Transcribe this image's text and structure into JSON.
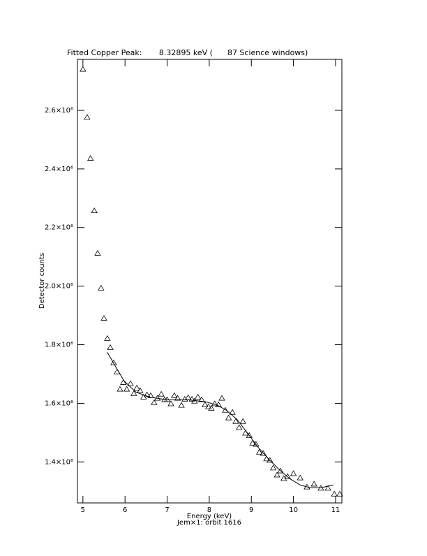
{
  "chart_data": {
    "type": "scatter",
    "title": "Fitted Copper Peak:       8.32895 keV (      87 Science windows)",
    "x_label": "Energy (keV)",
    "subtitle": "Jem×1: orbit 1616",
    "y_label": "Detector counts",
    "xlim": [
      4.87,
      11.15
    ],
    "ylim": [
      1260000,
      2774000
    ],
    "xticks": [
      5,
      6,
      7,
      8,
      9,
      10,
      11
    ],
    "yticks": [
      {
        "value": 1400000,
        "label": "1.4×10⁶"
      },
      {
        "value": 1600000,
        "label": "1.6×10⁶"
      },
      {
        "value": 1800000,
        "label": "1.8×10⁶"
      },
      {
        "value": 2000000,
        "label": "2.0×10⁶"
      },
      {
        "value": 2200000,
        "label": "2.2×10⁶"
      },
      {
        "value": 2400000,
        "label": "2.4×10⁶"
      },
      {
        "value": 2600000,
        "label": "2.6×10⁶"
      }
    ],
    "series": [
      {
        "style": "triangles",
        "color": "#000000",
        "x": [
          5.0,
          5.1,
          5.18,
          5.27,
          5.35,
          5.43,
          5.5,
          5.58,
          5.65,
          5.73,
          5.81,
          5.88,
          5.96,
          6.04,
          6.13,
          6.21,
          6.28,
          6.36,
          6.44,
          6.52,
          6.61,
          6.69,
          6.77,
          6.86,
          6.94,
          7.0,
          7.09,
          7.17,
          7.25,
          7.34,
          7.42,
          7.5,
          7.59,
          7.65,
          7.73,
          7.82,
          7.9,
          7.98,
          8.05,
          8.13,
          8.22,
          8.3,
          8.38,
          8.46,
          8.55,
          8.63,
          8.71,
          8.8,
          8.86,
          8.95,
          9.03,
          9.11,
          9.19,
          9.28,
          9.36,
          9.44,
          9.52,
          9.61,
          9.69,
          9.77,
          9.86,
          10.0,
          10.16,
          10.32,
          10.49,
          10.65,
          10.82,
          10.97,
          11.1
        ],
        "values": [
          2740000,
          2576000,
          2436000,
          2257000,
          2112000,
          1993000,
          1890000,
          1821000,
          1790000,
          1738000,
          1707000,
          1648000,
          1671000,
          1648000,
          1667000,
          1633000,
          1652000,
          1643000,
          1621000,
          1629000,
          1626000,
          1602000,
          1617000,
          1631000,
          1612000,
          1612000,
          1598000,
          1626000,
          1617000,
          1593000,
          1614000,
          1619000,
          1614000,
          1607000,
          1621000,
          1612000,
          1595000,
          1588000,
          1583000,
          1598000,
          1595000,
          1617000,
          1576000,
          1550000,
          1569000,
          1538000,
          1517000,
          1538000,
          1498000,
          1490000,
          1464000,
          1460000,
          1433000,
          1429000,
          1410000,
          1405000,
          1379000,
          1355000,
          1369000,
          1343000,
          1350000,
          1360000,
          1345000,
          1314000,
          1324000,
          1310000,
          1310000,
          1290000,
          1290000
        ]
      },
      {
        "style": "line",
        "color": "#000000",
        "x": [
          5.58,
          5.76,
          5.98,
          6.26,
          6.59,
          7.0,
          7.5,
          7.92,
          8.2,
          8.41,
          8.66,
          8.91,
          9.16,
          9.41,
          9.66,
          9.91,
          10.16,
          10.4,
          10.65,
          10.95
        ],
        "values": [
          1774000,
          1729000,
          1676000,
          1638000,
          1621000,
          1612000,
          1612000,
          1605000,
          1593000,
          1576000,
          1545000,
          1498000,
          1450000,
          1410000,
          1374000,
          1343000,
          1321000,
          1312000,
          1312000,
          1321000
        ]
      }
    ]
  }
}
